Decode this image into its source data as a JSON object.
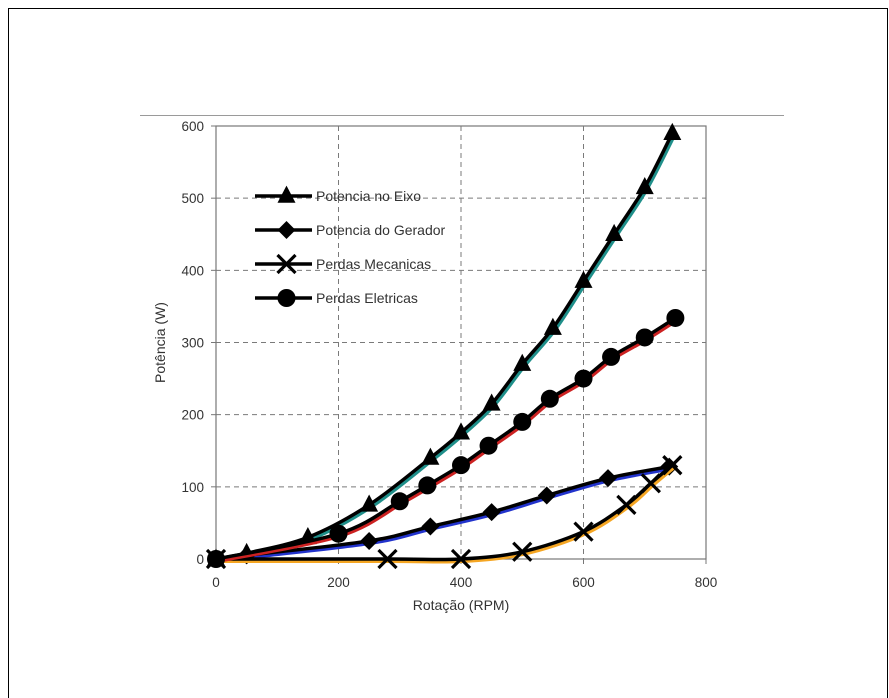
{
  "chart_data": {
    "type": "line",
    "xlabel": "Rotação (RPM)",
    "ylabel": "Potência  (W)",
    "xlim": [
      0,
      800
    ],
    "ylim": [
      0,
      600
    ],
    "xticks": [
      0,
      200,
      400,
      600,
      800
    ],
    "yticks": [
      0,
      100,
      200,
      300,
      400,
      500,
      600
    ],
    "grid": true,
    "legend_position": "upper-left",
    "series": [
      {
        "name": "Potencia no Eixo",
        "marker": "triangle",
        "underlay_color": "#1f8f8a",
        "x": [
          0,
          50,
          150,
          250,
          350,
          400,
          450,
          500,
          550,
          600,
          650,
          700,
          745
        ],
        "y": [
          0,
          8,
          30,
          75,
          140,
          175,
          215,
          270,
          320,
          385,
          450,
          515,
          590
        ]
      },
      {
        "name": "Potencia do Gerador",
        "marker": "diamond",
        "underlay_color": "#2233cc",
        "x": [
          0,
          50,
          250,
          350,
          450,
          540,
          640,
          740
        ],
        "y": [
          0,
          5,
          25,
          45,
          65,
          88,
          112,
          128
        ]
      },
      {
        "name": "Perdas Mecanicas",
        "marker": "x",
        "underlay_color": "#f5a623",
        "x": [
          0,
          280,
          400,
          500,
          600,
          670,
          710,
          745
        ],
        "y": [
          0,
          0,
          0,
          10,
          38,
          75,
          105,
          130
        ]
      },
      {
        "name": "Perdas Eletricas",
        "marker": "circle",
        "underlay_color": "#cc2222",
        "x": [
          0,
          200,
          300,
          345,
          400,
          445,
          500,
          545,
          600,
          645,
          700,
          750
        ],
        "y": [
          0,
          35,
          80,
          102,
          130,
          157,
          190,
          222,
          250,
          280,
          307,
          334
        ]
      }
    ],
    "colors": {
      "line": "#000000",
      "grid": "#7a7a7a",
      "axis": "#777777"
    }
  }
}
